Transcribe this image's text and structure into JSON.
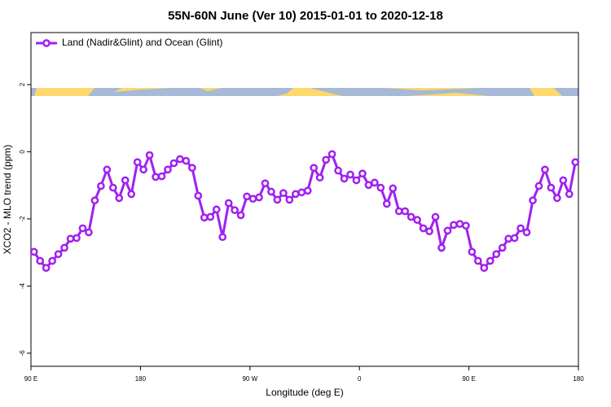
{
  "chart_data": {
    "type": "line",
    "title": "55N-60N June (Ver 10)   2015-01-01 to 2020-12-18",
    "x_label": "Longitude (deg E)",
    "y_label": "XCO2 - MLO trend (ppm)",
    "x": [
      92.5,
      97.5,
      102.5,
      107.5,
      112.5,
      117.5,
      122.5,
      127.5,
      132.5,
      137.5,
      142.5,
      147.5,
      152.5,
      157.5,
      162.5,
      167.5,
      172.5,
      177.5,
      182.5,
      187.5,
      192.5,
      197.5,
      202.5,
      207.5,
      212.5,
      217.5,
      222.5,
      227.5,
      232.5,
      237.5,
      242.5,
      247.5,
      252.5,
      257.5,
      262.5,
      267.5,
      272.5,
      277.5,
      282.5,
      287.5,
      292.5,
      297.5,
      302.5,
      307.5,
      312.5,
      317.5,
      322.5,
      327.5,
      332.5,
      337.5,
      342.5,
      347.5,
      352.5,
      357.5,
      362.5,
      367.5,
      372.5,
      377.5,
      382.5,
      387.5,
      392.5,
      397.5,
      402.5,
      407.5,
      412.5,
      417.5,
      422.5,
      427.5,
      432.5,
      437.5,
      442.5,
      447.5,
      452.5,
      457.5,
      462.5,
      467.5,
      472.5,
      477.5,
      482.5,
      487.5,
      492.5,
      497.5,
      502.5,
      507.5,
      512.5,
      517.5,
      522.5,
      527.5,
      532.5,
      537.5
    ],
    "series": [
      {
        "name": "Land (Nadir&Glint) and Ocean (Glint)",
        "color": "#a020f0",
        "values": [
          -2.98,
          -3.25,
          -3.46,
          -3.25,
          -3.05,
          -2.86,
          -2.59,
          -2.57,
          -2.28,
          -2.4,
          -1.45,
          -1.02,
          -0.53,
          -1.07,
          -1.38,
          -0.85,
          -1.26,
          -0.31,
          -0.53,
          -0.1,
          -0.75,
          -0.73,
          -0.53,
          -0.34,
          -0.22,
          -0.27,
          -0.48,
          -1.31,
          -1.96,
          -1.94,
          -1.72,
          -2.54,
          -1.53,
          -1.74,
          -1.89,
          -1.33,
          -1.4,
          -1.36,
          -0.94,
          -1.19,
          -1.43,
          -1.23,
          -1.43,
          -1.26,
          -1.21,
          -1.16,
          -0.48,
          -0.77,
          -0.24,
          -0.07,
          -0.56,
          -0.8,
          -0.68,
          -0.85,
          -0.65,
          -0.99,
          -0.92,
          -1.07,
          -1.55,
          -1.09,
          -1.77,
          -1.77,
          -1.94,
          -2.03,
          -2.28,
          -2.37,
          -1.94,
          -2.86,
          -2.35,
          -2.18,
          -2.15,
          -2.2,
          -2.98,
          -3.25,
          -3.46,
          -3.25,
          -3.05,
          -2.86,
          -2.59,
          -2.57,
          -2.28,
          -2.4,
          -1.45,
          -1.02,
          -0.53,
          -1.07,
          -1.38,
          -0.85,
          -1.26,
          -0.31
        ]
      }
    ],
    "xlim": [
      90,
      540
    ],
    "xticks": [
      {
        "value": 90,
        "label": "90 E"
      },
      180,
      {
        "value": 270,
        "label": "90 W"
      },
      {
        "value": 360,
        "label": "0"
      },
      {
        "value": 450,
        "label": "90 E"
      },
      {
        "value": 540,
        "label": "180"
      }
    ],
    "ylim": [
      -6.39,
      3.55
    ],
    "yticks": [
      -6,
      -4,
      -2,
      0,
      2
    ],
    "legend": "topleft"
  }
}
